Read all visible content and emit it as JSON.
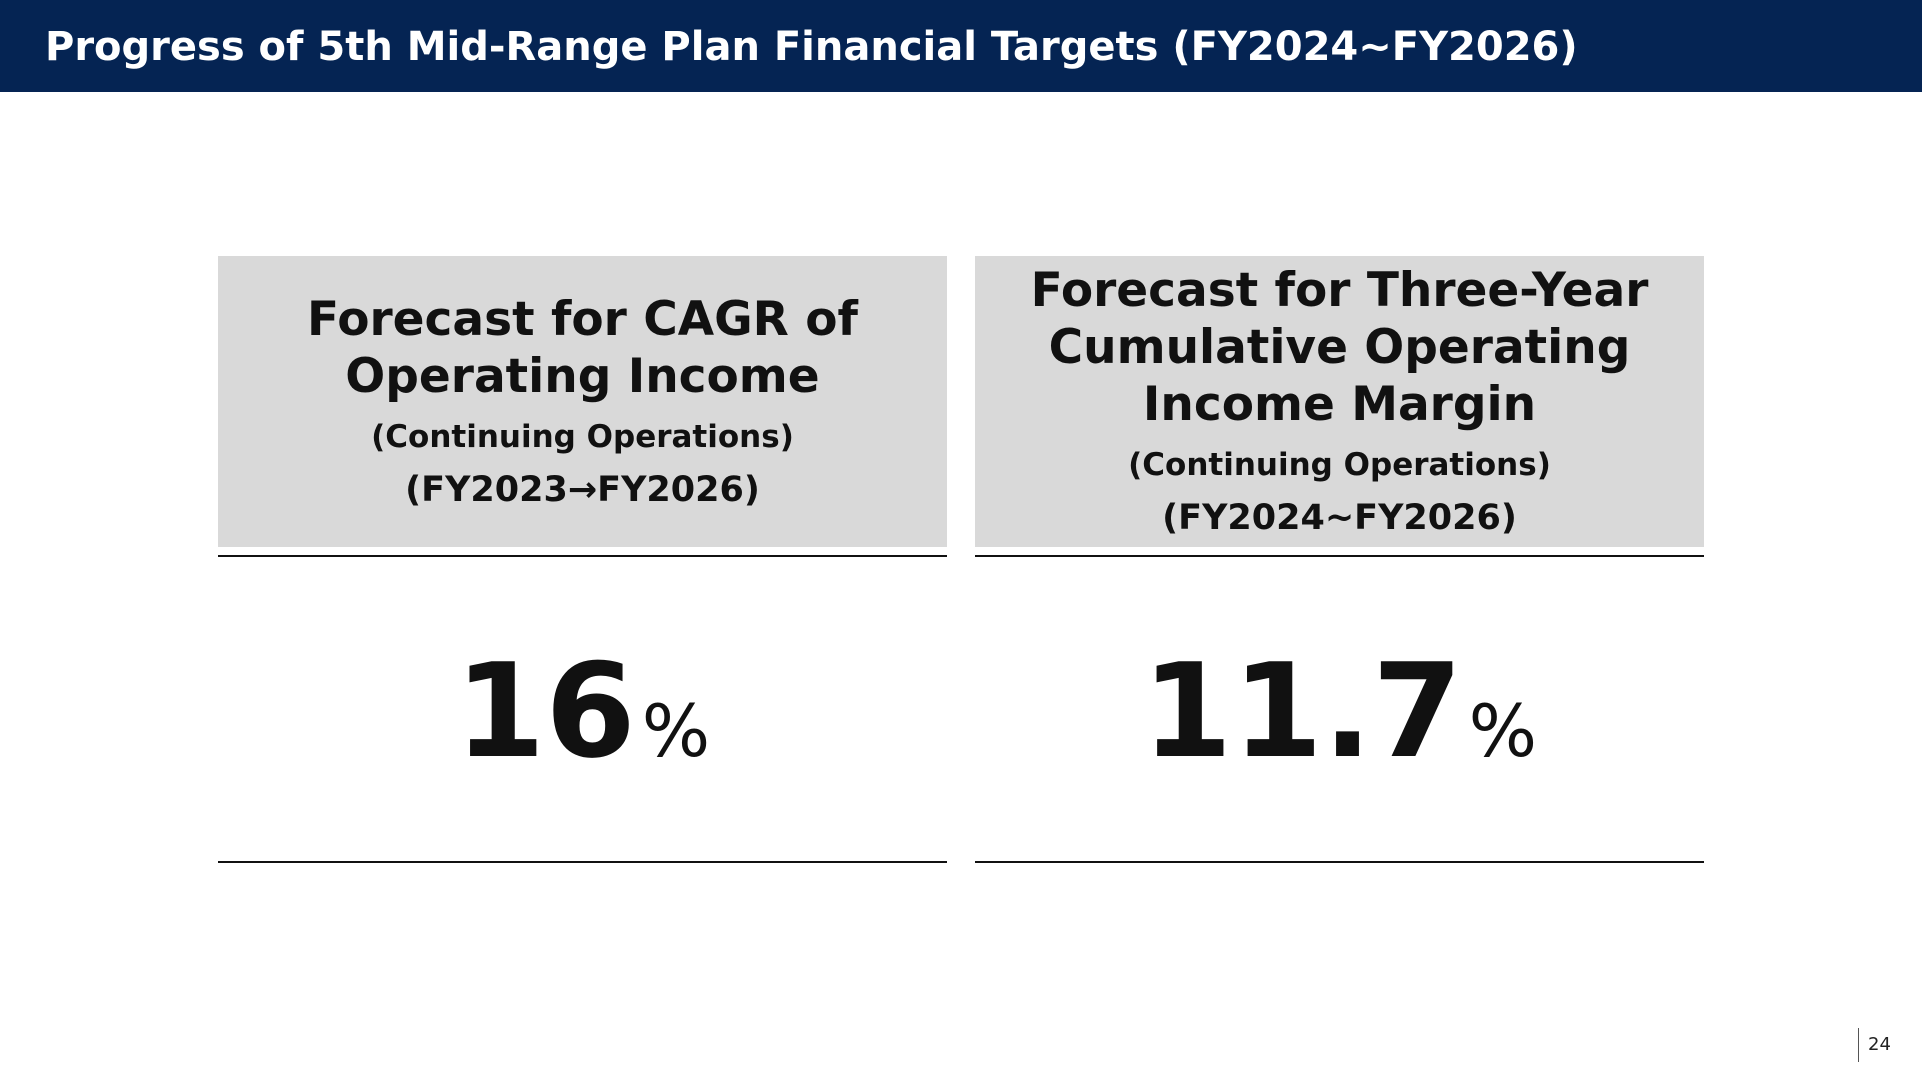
{
  "header": {
    "title": "Progress of 5th Mid-Range Plan Financial Targets (FY2024~FY2026)"
  },
  "cards": [
    {
      "title_line1": "Forecast for CAGR of",
      "title_line2": "Operating Income",
      "subtitle": "(Continuing Operations)",
      "period": "(FY2023→FY2026)",
      "value": "16",
      "unit": "%"
    },
    {
      "title_line1": "Forecast for Three-Year",
      "title_line2": "Cumulative Operating",
      "title_line3": "Income Margin",
      "subtitle": "(Continuing Operations)",
      "period": "(FY2024~FY2026)",
      "value": "11.7",
      "unit": "%"
    }
  ],
  "footer": {
    "page_number": "24"
  },
  "colors": {
    "header_bg": "#052453",
    "card_head_bg": "#d9d9d9"
  }
}
